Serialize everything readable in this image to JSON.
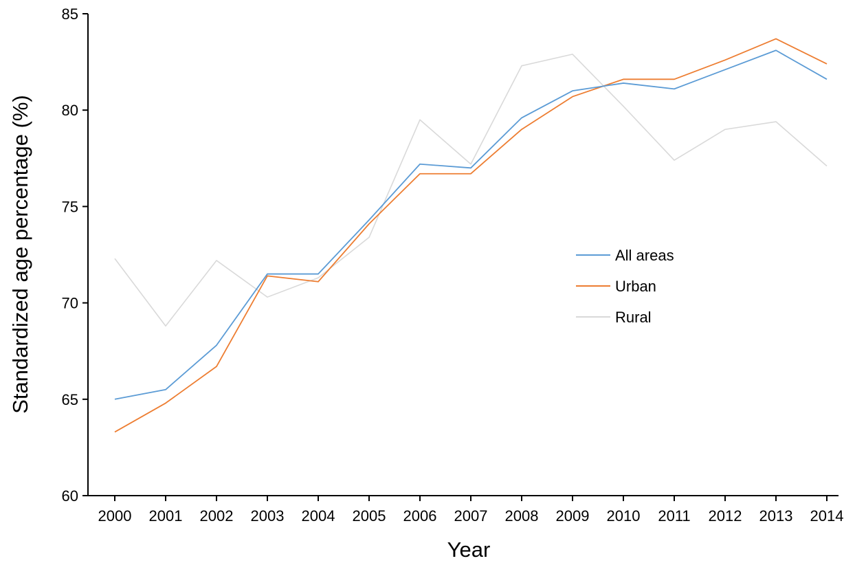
{
  "chart_data": {
    "type": "line",
    "title": "",
    "xlabel": "Year",
    "ylabel": "Standardized age percentage (%)",
    "x": [
      "2000",
      "2001",
      "2002",
      "2003",
      "2004",
      "2005",
      "2006",
      "2007",
      "2008",
      "2009",
      "2010",
      "2011",
      "2012",
      "2013",
      "2014"
    ],
    "ylim": [
      60,
      85
    ],
    "yticks": [
      60,
      65,
      70,
      75,
      80,
      85
    ],
    "grid": false,
    "legend_position": "center-right",
    "series": [
      {
        "name": "All areas",
        "color": "#5B9BD5",
        "values": [
          65.0,
          65.5,
          67.8,
          71.5,
          71.5,
          74.3,
          77.2,
          77.0,
          79.6,
          81.0,
          81.4,
          81.1,
          82.1,
          83.1,
          81.6
        ]
      },
      {
        "name": "Urban",
        "color": "#ED7D31",
        "values": [
          63.3,
          64.8,
          66.7,
          71.4,
          71.1,
          74.1,
          76.7,
          76.7,
          79.0,
          80.7,
          81.6,
          81.6,
          82.6,
          83.7,
          82.4
        ]
      },
      {
        "name": "Rural",
        "color": "#D9D9D9",
        "values": [
          72.3,
          68.8,
          72.2,
          70.3,
          71.3,
          73.4,
          79.5,
          77.2,
          82.3,
          82.9,
          80.2,
          77.4,
          79.0,
          79.4,
          77.1
        ]
      }
    ]
  }
}
